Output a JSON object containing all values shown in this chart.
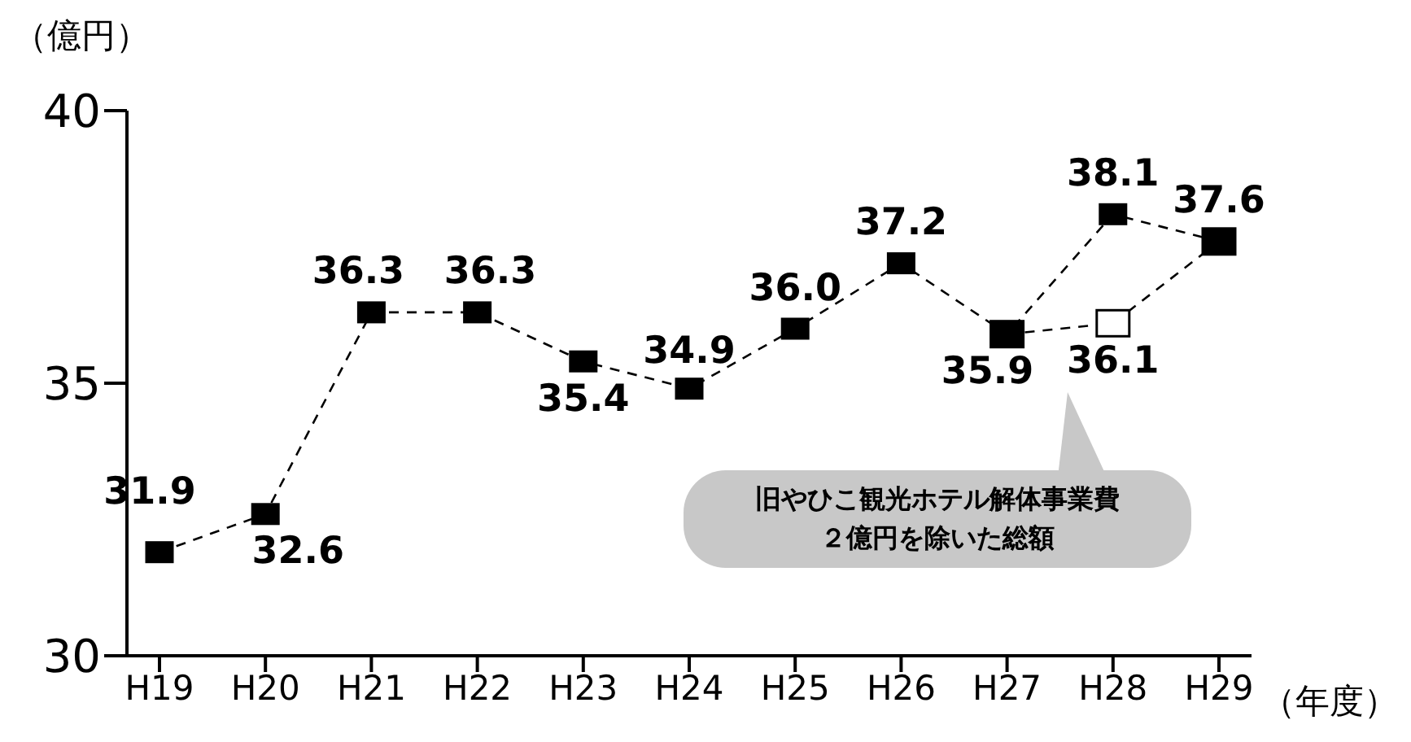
{
  "chart_data": {
    "type": "line",
    "ylabel": "（億円）",
    "xlabel": "（年度）",
    "categories": [
      "H19",
      "H20",
      "H21",
      "H22",
      "H23",
      "H24",
      "H25",
      "H26",
      "H27",
      "H28",
      "H29"
    ],
    "series": [
      {
        "color": "#000000",
        "values": [
          31.9,
          32.6,
          36.3,
          36.3,
          35.4,
          34.9,
          36.0,
          37.2,
          35.9,
          38.1,
          37.6
        ],
        "value_labels": [
          "31.9",
          "32.6",
          "36.3",
          "36.3",
          "35.4",
          "34.9",
          "36.0",
          "37.2",
          "35.9",
          "38.1",
          "37.6"
        ]
      },
      {
        "color": "#000000",
        "colors": [
          null,
          null,
          null,
          null,
          null,
          null,
          null,
          null,
          "#000000",
          "#ffffff",
          "#000000"
        ],
        "values": [
          null,
          null,
          null,
          null,
          null,
          null,
          null,
          null,
          35.9,
          36.1,
          37.6
        ],
        "value_labels": [
          null,
          null,
          null,
          null,
          null,
          null,
          null,
          null,
          null,
          "36.1",
          null
        ]
      }
    ],
    "ylim": [
      30,
      40
    ],
    "yticks": [
      30,
      35,
      40
    ],
    "grid": false,
    "legend": false,
    "marker": "square",
    "line_style": "dashed",
    "annotations": [
      "旧やひこ観光ホテル解体事業費２億円を除いた総額"
    ]
  }
}
